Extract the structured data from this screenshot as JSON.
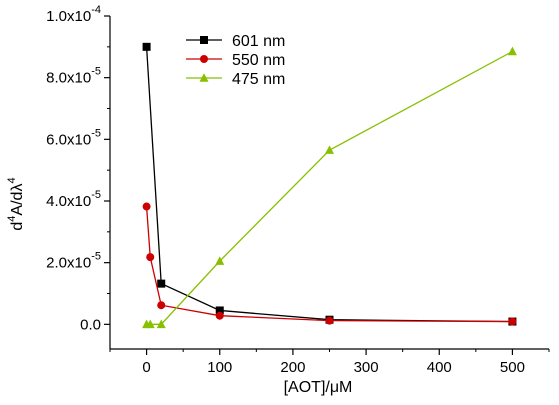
{
  "chart_data": {
    "type": "line",
    "xlabel": "[AOT]/μM",
    "ylabel": "d⁴A/dλ⁴",
    "xlim": [
      -50,
      550
    ],
    "ylim": [
      -8e-06,
      0.0001
    ],
    "grid": false,
    "legend_position": "top-left",
    "x_ticks": [
      0,
      100,
      200,
      300,
      400,
      500
    ],
    "y_ticks": [
      {
        "value": 0.0,
        "label": "0.0"
      },
      {
        "value": 2e-05,
        "label": "2.0x10-5"
      },
      {
        "value": 4e-05,
        "label": "4.0x10-5"
      },
      {
        "value": 6e-05,
        "label": "6.0x10-5"
      },
      {
        "value": 8e-05,
        "label": "8.0x10-5"
      },
      {
        "value": 0.0001,
        "label": "1.0x10-4"
      }
    ],
    "series": [
      {
        "name": "601 nm",
        "color": "#000000",
        "marker": "square",
        "x": [
          0,
          20,
          100,
          250,
          500
        ],
        "y": [
          9e-05,
          1.32e-05,
          4.5e-06,
          1.5e-06,
          9e-07
        ]
      },
      {
        "name": "550 nm",
        "color": "#cc0000",
        "marker": "circle",
        "x": [
          0,
          5,
          20,
          100,
          250,
          500
        ],
        "y": [
          3.82e-05,
          2.18e-05,
          6.2e-06,
          2.8e-06,
          1.2e-06,
          9e-07
        ]
      },
      {
        "name": "475 nm",
        "color": "#88c000",
        "marker": "triangle",
        "x": [
          0,
          5,
          20,
          100,
          250,
          500
        ],
        "y": [
          0.0,
          0.0,
          0.0,
          2.05e-05,
          5.65e-05,
          8.85e-05
        ]
      }
    ]
  }
}
